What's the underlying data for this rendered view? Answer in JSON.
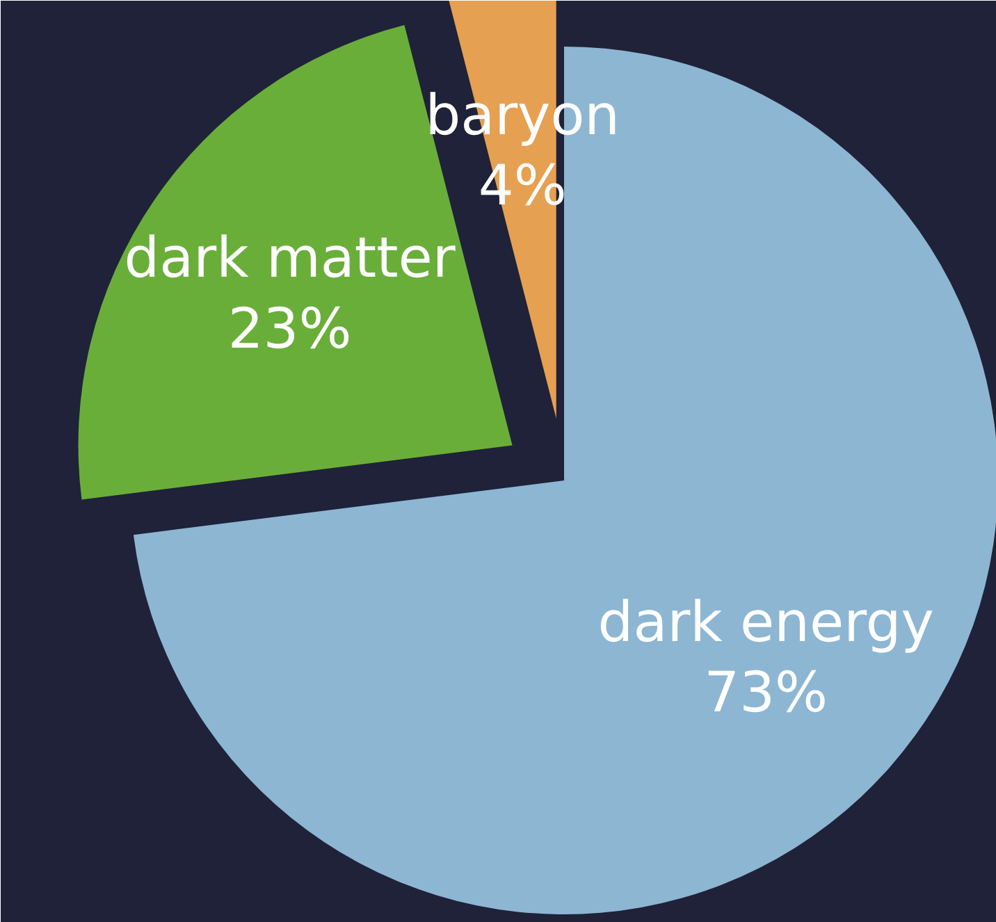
{
  "chart_data": {
    "type": "pie",
    "categories": [
      "dark energy",
      "dark matter",
      "baryon"
    ],
    "values": [
      73,
      23,
      4
    ],
    "colors": [
      "#8db6d2",
      "#6aae3a",
      "#e6a052"
    ],
    "value_labels": [
      "73%",
      "23%",
      "4%"
    ]
  }
}
